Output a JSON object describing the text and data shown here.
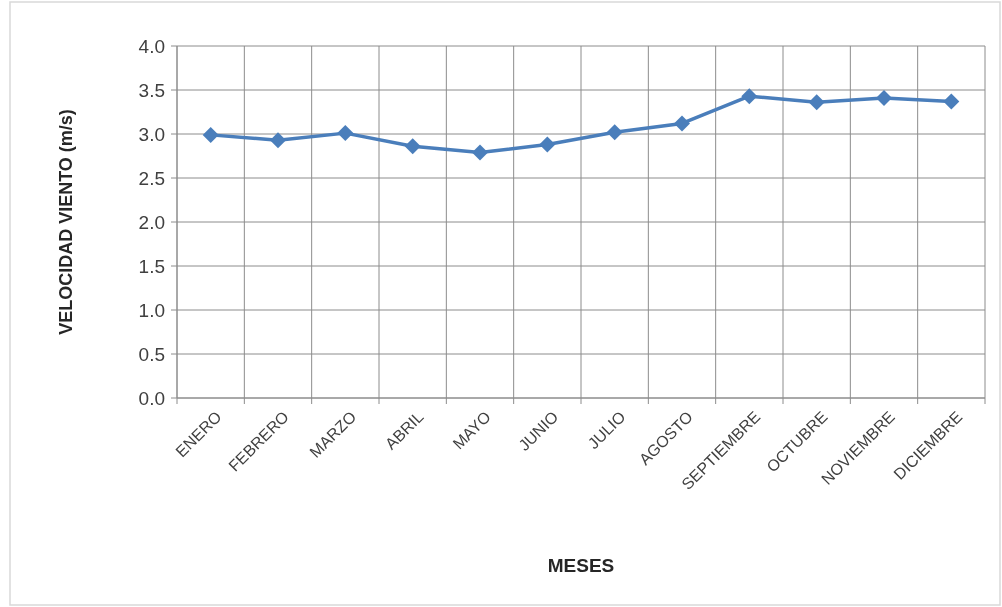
{
  "chart_data": {
    "type": "line",
    "xlabel": "MESES",
    "ylabel": "VELOCIDAD VIENTO (m/s)",
    "categories": [
      "ENERO",
      "FEBRERO",
      "MARZO",
      "ABRIL",
      "MAYO",
      "JUNIO",
      "JULIO",
      "AGOSTO",
      "SEPTIEMBRE",
      "OCTUBRE",
      "NOVIEMBRE",
      "DICIEMBRE"
    ],
    "series": [
      {
        "color": "#4a7ebb",
        "values": [
          2.99,
          2.93,
          3.01,
          2.86,
          2.79,
          2.88,
          3.02,
          3.12,
          3.43,
          3.36,
          3.41,
          3.37
        ]
      }
    ],
    "ylim": [
      0,
      4
    ],
    "yticks": [
      {
        "value": 0,
        "label": "0.0"
      },
      {
        "value": 0.5,
        "label": "0.5"
      },
      {
        "value": 1,
        "label": "1.0"
      },
      {
        "value": 1.5,
        "label": "1.5"
      },
      {
        "value": 2,
        "label": "2.0"
      },
      {
        "value": 2.5,
        "label": "2.5"
      },
      {
        "value": 3,
        "label": "3.0"
      },
      {
        "value": 3.5,
        "label": "3.5"
      },
      {
        "value": 4,
        "label": "4.0"
      }
    ],
    "grid": true,
    "marker": "diamond",
    "line_style": "solid"
  }
}
